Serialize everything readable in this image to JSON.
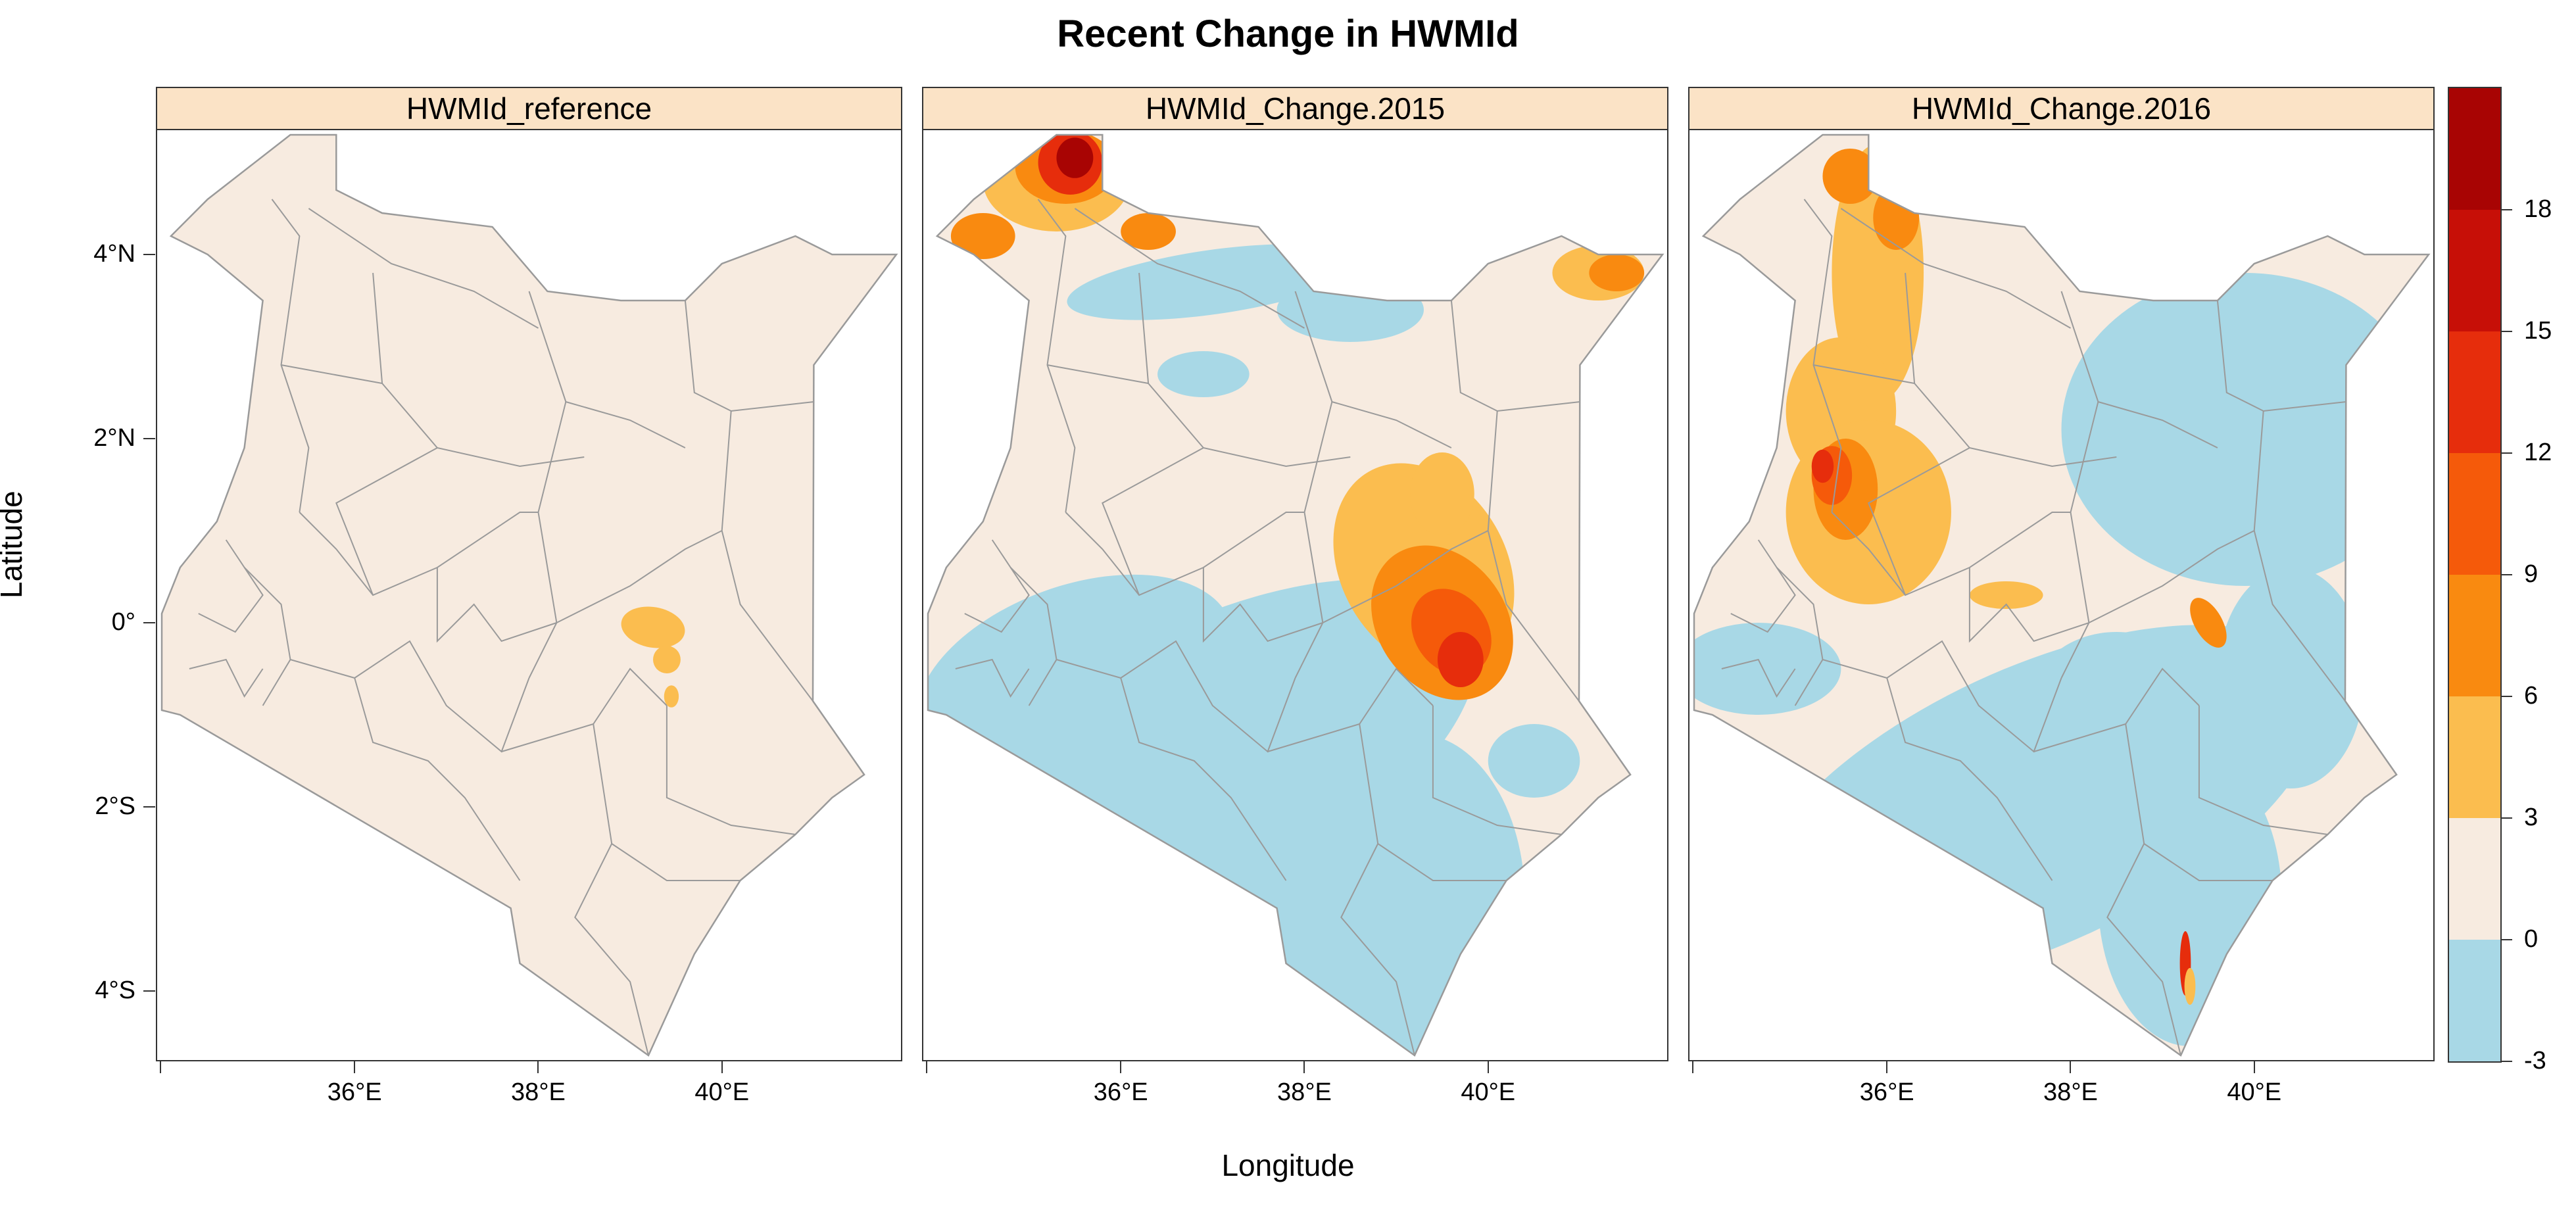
{
  "title": "Recent Change in HWMId",
  "xlabel": "Longitude",
  "ylabel": "Latitude",
  "panels": [
    {
      "name": "reference",
      "label": "HWMId_reference"
    },
    {
      "name": "change2015",
      "label": "HWMId_Change.2015"
    },
    {
      "name": "change2016",
      "label": "HWMId_Change.2016"
    }
  ],
  "y_ticks": [
    {
      "label": "4°N",
      "value": 4
    },
    {
      "label": "2°N",
      "value": 2
    },
    {
      "label": "0°",
      "value": 0
    },
    {
      "label": "2°S",
      "value": -2
    },
    {
      "label": "4°S",
      "value": -4
    }
  ],
  "x_ticks": [
    {
      "label": "36°E",
      "value": 36
    },
    {
      "label": "38°E",
      "value": 38
    },
    {
      "label": "40°E",
      "value": 40
    }
  ],
  "legend": {
    "breaks": [
      -3,
      0,
      3,
      6,
      9,
      12,
      15,
      18
    ],
    "labels": [
      "18",
      "15",
      "12",
      "9",
      "6",
      "3",
      "0",
      "-3"
    ],
    "colors": [
      "#a8d8e6",
      "#f7ebe0",
      "#fbbd4f",
      "#f98a10",
      "#f55a0a",
      "#e62d0c",
      "#c70f07",
      "#a80403"
    ]
  },
  "colors": {
    "base": "#f7ebe0",
    "cool": "#a8d8e6",
    "border": "#9a9a9a"
  }
}
